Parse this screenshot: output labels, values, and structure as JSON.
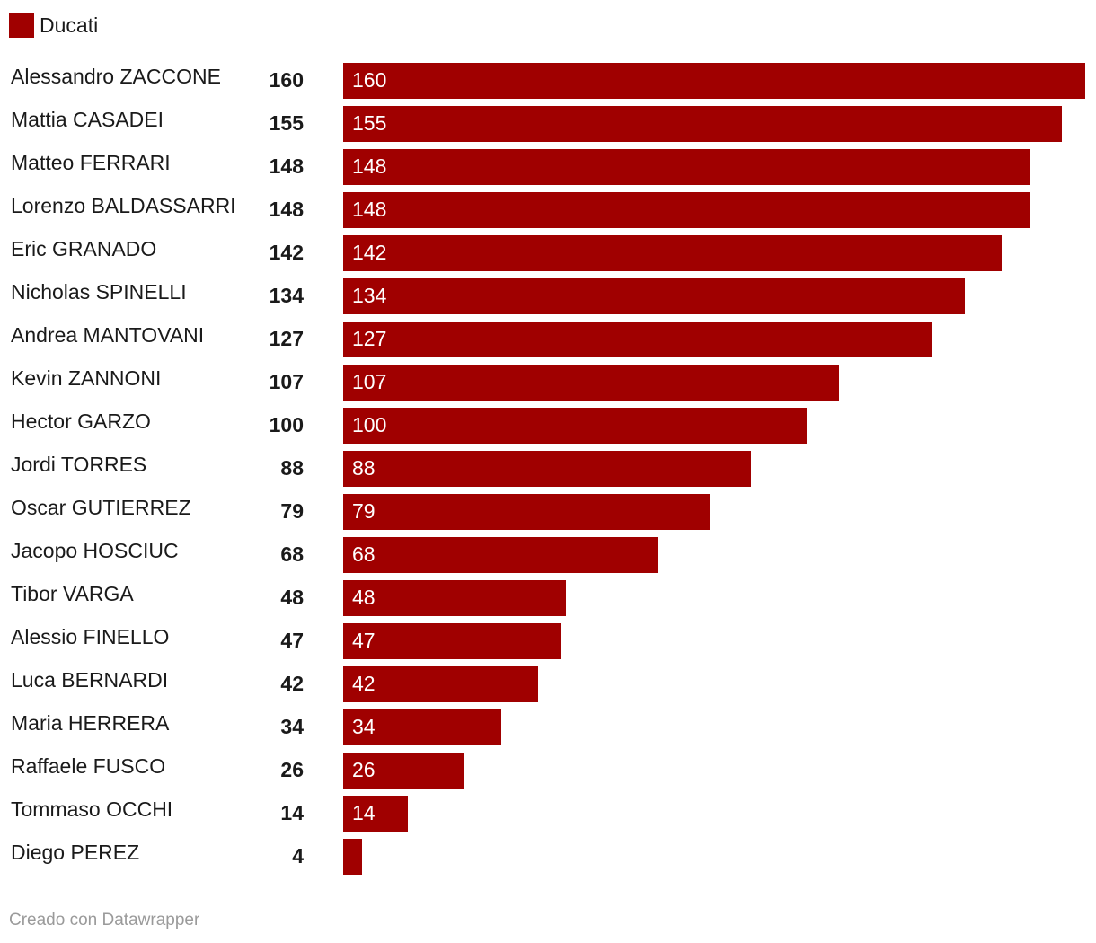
{
  "legend": {
    "label": "Ducati",
    "color": "#a00000"
  },
  "footer": {
    "text": "Creado con Datawrapper"
  },
  "chart_data": {
    "type": "bar",
    "orientation": "horizontal",
    "categories": [
      "Alessandro ZACCONE",
      "Mattia CASADEI",
      "Matteo FERRARI",
      "Lorenzo BALDASSARRI",
      "Eric GRANADO",
      "Nicholas SPINELLI",
      "Andrea MANTOVANI",
      "Kevin ZANNONI",
      "Hector GARZO",
      "Jordi TORRES",
      "Oscar GUTIERREZ",
      "Jacopo HOSCIUC",
      "Tibor VARGA",
      "Alessio FINELLO",
      "Luca BERNARDI",
      "Maria HERRERA",
      "Raffaele FUSCO",
      "Tommaso OCCHI",
      "Diego PEREZ"
    ],
    "series": [
      {
        "name": "Ducati",
        "color": "#a00000",
        "values": [
          160,
          155,
          148,
          148,
          142,
          134,
          127,
          107,
          100,
          88,
          79,
          68,
          48,
          47,
          42,
          34,
          26,
          14,
          4
        ]
      }
    ],
    "xlim": [
      0,
      160
    ],
    "grid": false,
    "legend_position": "top-left"
  }
}
